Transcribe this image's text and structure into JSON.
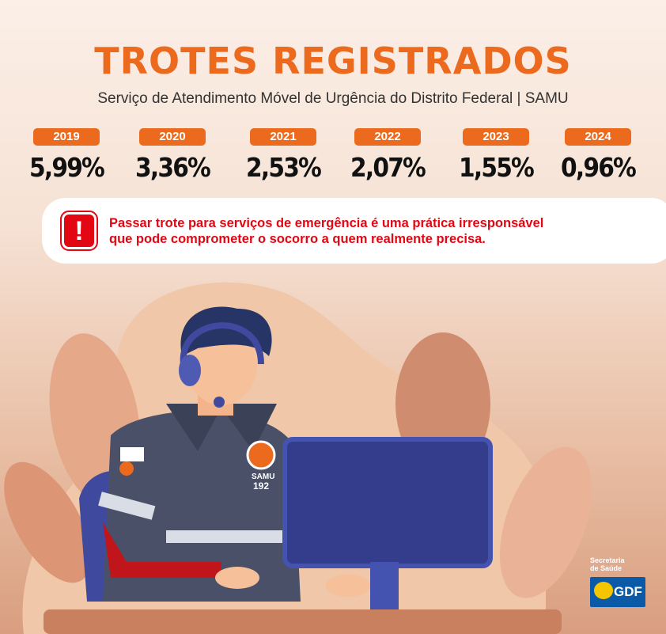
{
  "header": {
    "title": "TROTES REGISTRADOS",
    "subtitle": "Serviço de Atendimento Móvel de Urgência do Distrito Federal | SAMU"
  },
  "stats": [
    {
      "year": "2019",
      "value": "5,99%"
    },
    {
      "year": "2020",
      "value": "3,36%"
    },
    {
      "year": "2021",
      "value": "2,53%"
    },
    {
      "year": "2022",
      "value": "2,07%"
    },
    {
      "year": "2023",
      "value": "1,55%"
    },
    {
      "year": "2024",
      "value": "0,96%"
    }
  ],
  "alert": {
    "icon": "exclamation-icon",
    "line1": "Passar trote para serviços de emergência é uma prática irresponsável",
    "line2": "que pode comprometer o socorro a quem realmente precisa."
  },
  "uniform": {
    "badge": "SAMU",
    "number": "192"
  },
  "footer": {
    "org": "Secretaria",
    "org2": "de Saúde",
    "logo": "GDF"
  },
  "colors": {
    "accent": "#ec6a1d",
    "alert": "#e30613",
    "gdf": "#0b5aa8"
  }
}
